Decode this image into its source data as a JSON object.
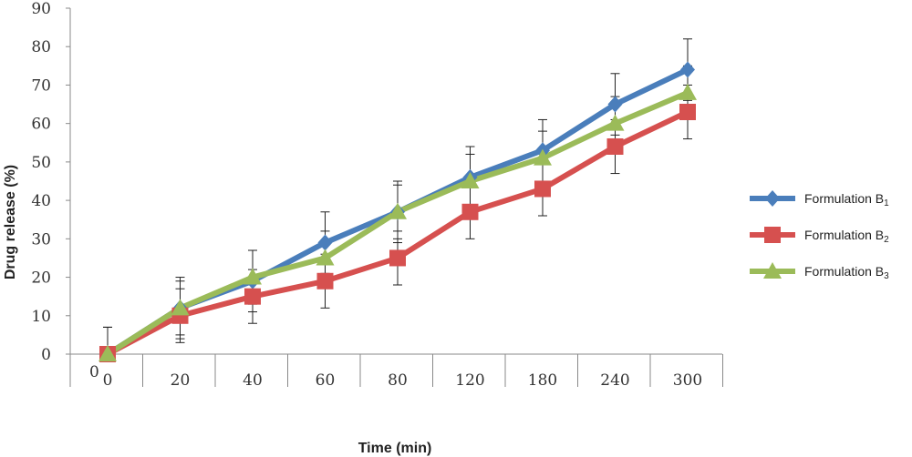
{
  "chart_data": {
    "type": "line",
    "title": "",
    "xlabel": "Time (min)",
    "ylabel": "Drug release (%)",
    "categories": [
      "0",
      "20",
      "40",
      "60",
      "80",
      "120",
      "180",
      "240",
      "300"
    ],
    "x_origin_label": "0",
    "ylim": [
      0,
      90
    ],
    "yticks": [
      0,
      10,
      20,
      30,
      40,
      50,
      60,
      70,
      80,
      90
    ],
    "grid": false,
    "legend_position": "right",
    "series": [
      {
        "name": "Formulation B",
        "subscript": "1",
        "color": "#4a7ebb",
        "marker": "diamond",
        "values": [
          0,
          12,
          19,
          29,
          37,
          46,
          53,
          65,
          74
        ],
        "error": [
          7,
          8,
          8,
          8,
          8,
          8,
          8,
          8,
          8
        ]
      },
      {
        "name": "Formulation B",
        "subscript": "2",
        "color": "#d6504f",
        "marker": "square",
        "values": [
          0,
          10,
          15,
          19,
          25,
          37,
          43,
          54,
          63
        ],
        "error": [
          7,
          7,
          7,
          7,
          7,
          7,
          7,
          7,
          7
        ]
      },
      {
        "name": "Formulation B",
        "subscript": "3",
        "color": "#9bbb59",
        "marker": "triangle",
        "values": [
          0,
          12,
          20,
          25,
          37,
          45,
          51,
          60,
          68
        ],
        "error": [
          7,
          7,
          7,
          7,
          7,
          7,
          7,
          7,
          7
        ]
      }
    ]
  }
}
